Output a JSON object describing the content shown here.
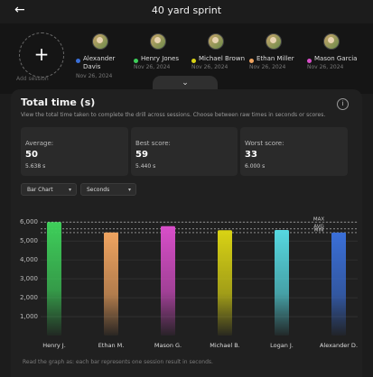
{
  "header": {
    "back_icon": "arrow-left-icon",
    "title": "40 yard sprint"
  },
  "sessions": {
    "add_label": "Add session",
    "items": [
      {
        "name": "Alexander Davis",
        "name_line1": "Alexander",
        "name_line2": "Davis",
        "date": "Nov 26, 2024",
        "color": "#3a6fd8"
      },
      {
        "name": "Henry Jones",
        "date": "Nov 26, 2024",
        "color": "#3ecf5a"
      },
      {
        "name": "Michael Brown",
        "date": "Nov 26, 2024",
        "color": "#d9d314"
      },
      {
        "name": "Ethan Miller",
        "date": "Nov 26, 2024",
        "color": "#f0a460"
      },
      {
        "name": "Mason Garcia",
        "date": "Nov 26, 2024",
        "color": "#d84ec9"
      }
    ]
  },
  "collapse_icon": "chevron-down-icon",
  "section": {
    "title": "Total time (s)",
    "info_icon": "info-icon",
    "description": "View the total time taken to complete the drill across sessions. Choose between raw times in seconds or scores."
  },
  "stats": [
    {
      "label": "Average:",
      "score": "50",
      "time": "5.638 s"
    },
    {
      "label": "Best score:",
      "score": "59",
      "time": "5.440 s"
    },
    {
      "label": "Worst score:",
      "score": "33",
      "time": "6.000 s"
    }
  ],
  "controls": {
    "chart_type": "Bar Chart",
    "unit": "Seconds"
  },
  "chart_data": {
    "type": "bar",
    "categories": [
      "Henry J.",
      "Ethan M.",
      "Mason G.",
      "Michael B.",
      "Logan J.",
      "Alexander D."
    ],
    "values": [
      6000,
      5450,
      5780,
      5570,
      5580,
      5440
    ],
    "colors": [
      "#3ecf5a",
      "#f0a460",
      "#d84ec9",
      "#d9d314",
      "#56d8e0",
      "#3a6fd8"
    ],
    "y_ticks": [
      1000,
      2000,
      3000,
      4000,
      5000,
      6000
    ],
    "y_tick_labels": [
      "1,000",
      "2,000",
      "3,000",
      "4,000",
      "5,000",
      "6,000"
    ],
    "ylim": [
      0,
      6200
    ],
    "reference_lines": [
      {
        "label": "MAX",
        "value": 6000
      },
      {
        "label": "AVG",
        "value": 5638
      },
      {
        "label": "MIN",
        "value": 5440
      }
    ]
  },
  "footer": "Read the graph as: each bar represents one session result in seconds."
}
